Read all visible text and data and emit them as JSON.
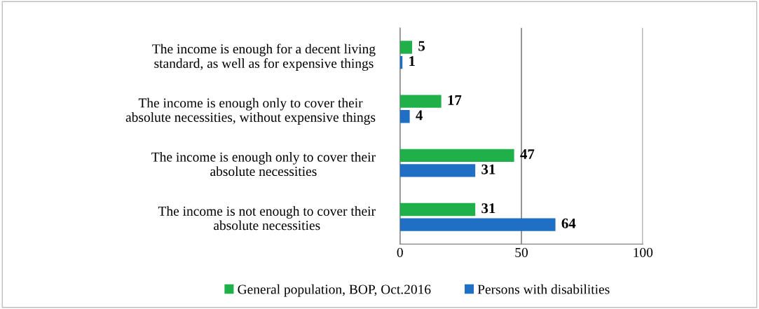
{
  "chart_data": {
    "type": "bar",
    "orientation": "horizontal",
    "categories": [
      "The income is enough for a decent living\nstandard, as well as for expensive things",
      "The income is enough only to cover their\nabsolute necessities, without expensive things",
      "The income is enough only to cover their\nabsolute necessities",
      "The income is not enough to cover their\nabsolute necessities"
    ],
    "series": [
      {
        "name": "General population, BOP, Oct.2016",
        "color": "#1fb04a",
        "values": [
          5,
          17,
          47,
          31
        ]
      },
      {
        "name": "Persons with disabilities",
        "color": "#1f6fc4",
        "values": [
          1,
          4,
          31,
          64
        ]
      }
    ],
    "xlim": [
      0,
      100
    ],
    "xticks": [
      0,
      50,
      100
    ],
    "grid": "x",
    "legend": "bottom",
    "data_labels": true
  }
}
